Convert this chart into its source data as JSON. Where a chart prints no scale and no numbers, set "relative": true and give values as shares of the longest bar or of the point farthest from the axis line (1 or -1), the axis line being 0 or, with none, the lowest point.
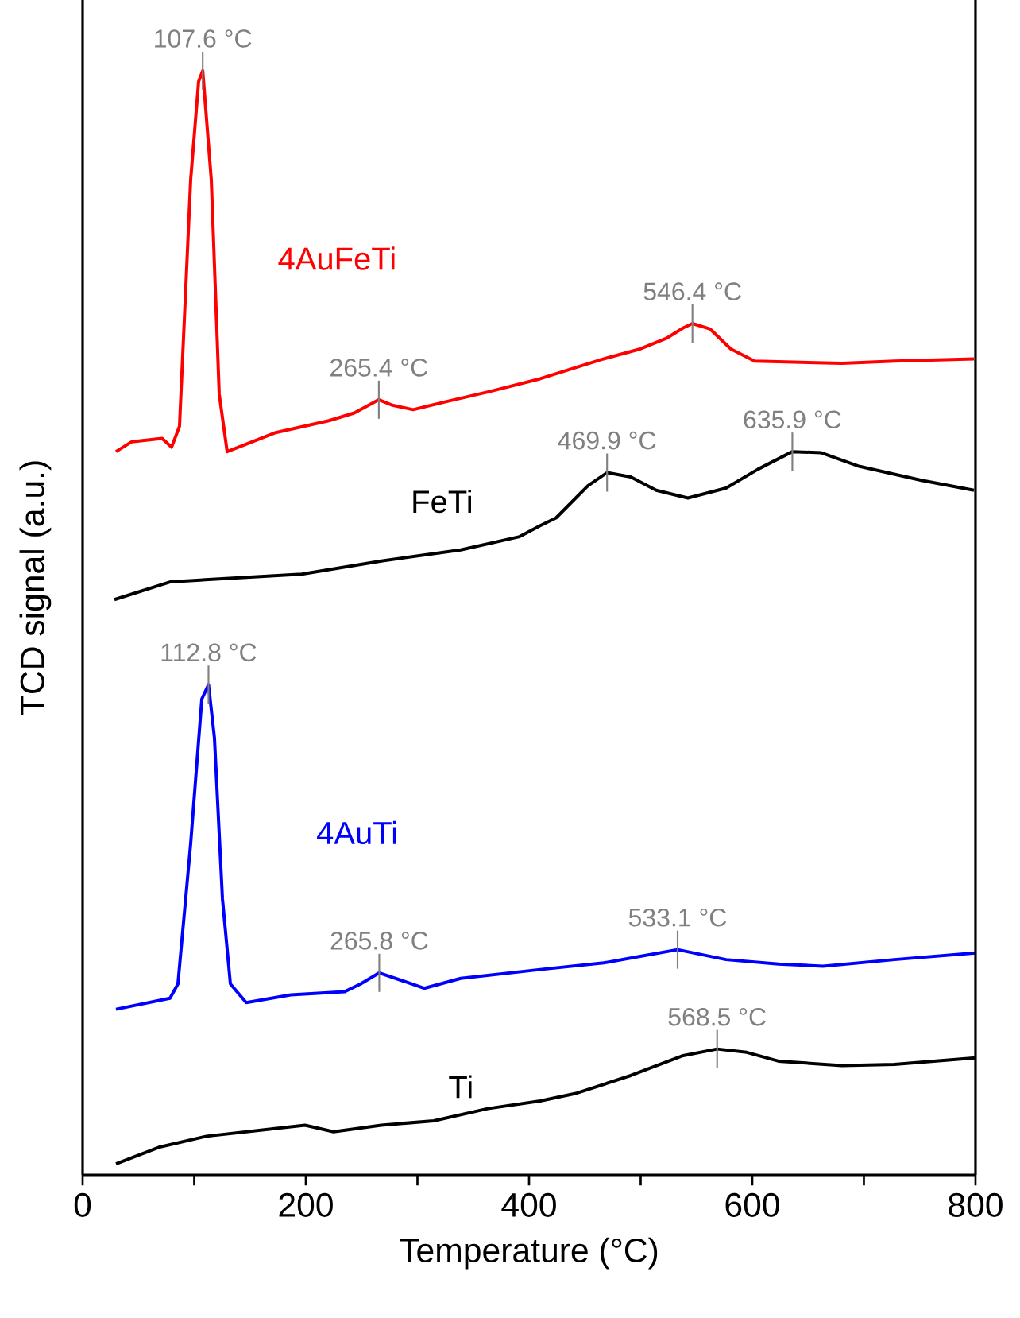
{
  "chart_data": {
    "type": "line",
    "relative": true,
    "xlabel": "Temperature (°C)",
    "ylabel": "TCD signal (a.u.)",
    "xlim": [
      0,
      800
    ],
    "xticks": [
      0,
      {
        "value": 100,
        "label": null
      },
      200,
      {
        "value": 300,
        "label": null
      },
      400,
      {
        "value": 500,
        "label": null
      },
      600,
      {
        "value": 700,
        "label": null
      },
      800
    ],
    "series": [
      {
        "name": "4AuFeTi",
        "color": "#ff0000",
        "x": [
          29.9,
          44.1,
          71.2,
          79.7,
          86.8,
          96.8,
          103.9,
          107.6,
          115.3,
          122.4,
          129.5,
          172.2,
          220.6,
          243.4,
          265.4,
          277.6,
          296.1,
          324.6,
          363.0,
          410.0,
          466.9,
          499.6,
          523.8,
          538.1,
          546.4,
          562.3,
          580.8,
          602.1,
          680.4,
          727.4,
          798.6
        ],
        "values": [
          0.655,
          0.664,
          0.667,
          0.659,
          0.678,
          0.901,
          0.99,
          1.0,
          0.901,
          0.707,
          0.655,
          0.672,
          0.683,
          0.69,
          0.702,
          0.697,
          0.693,
          0.7,
          0.709,
          0.721,
          0.739,
          0.748,
          0.758,
          0.767,
          0.771,
          0.766,
          0.748,
          0.737,
          0.735,
          0.737,
          0.739
        ]
      },
      {
        "name": "FeTi",
        "color": "#000000",
        "x": [
          28.5,
          78.3,
          125.3,
          196.4,
          267.6,
          338.8,
          391.5,
          410.0,
          424.2,
          452.7,
          469.9,
          491.1,
          513.9,
          542.3,
          576.5,
          605.0,
          635.9,
          661.9,
          694.7,
          751.6,
          798.6
        ],
        "values": [
          0.521,
          0.537,
          0.54,
          0.544,
          0.556,
          0.566,
          0.578,
          0.588,
          0.595,
          0.624,
          0.636,
          0.632,
          0.62,
          0.613,
          0.622,
          0.639,
          0.655,
          0.654,
          0.642,
          0.629,
          0.62
        ]
      },
      {
        "name": "4AuTi",
        "color": "#0000ff",
        "x": [
          29.9,
          78.3,
          85.4,
          96.8,
          106.8,
          112.8,
          118.1,
          125.3,
          132.4,
          146.6,
          186.5,
          234.9,
          249.1,
          265.8,
          286.1,
          306.0,
          338.8,
          410.0,
          466.9,
          499.6,
          533.1,
          576.5,
          623.5,
          663.3,
          727.4,
          800
        ],
        "values": [
          0.15,
          0.16,
          0.173,
          0.3,
          0.431,
          0.444,
          0.396,
          0.25,
          0.173,
          0.156,
          0.163,
          0.166,
          0.173,
          0.183,
          0.176,
          0.169,
          0.178,
          0.186,
          0.192,
          0.198,
          0.204,
          0.195,
          0.191,
          0.189,
          0.195,
          0.201
        ]
      },
      {
        "name": "Ti",
        "color": "#000000",
        "x": [
          29.9,
          68.3,
          111.0,
          172.2,
          199.3,
          224.9,
          267.6,
          314.6,
          363.0,
          410.0,
          442.7,
          491.1,
          538.1,
          568.5,
          595.0,
          623.5,
          680.4,
          727.4,
          800
        ],
        "values": [
          0.01,
          0.025,
          0.035,
          0.042,
          0.045,
          0.039,
          0.045,
          0.049,
          0.06,
          0.067,
          0.074,
          0.09,
          0.108,
          0.114,
          0.111,
          0.103,
          0.099,
          0.1,
          0.106
        ]
      }
    ],
    "annotations": [
      {
        "text": "107.6 °C",
        "x": 107.6,
        "y": 1.0
      },
      {
        "text": "265.4 °C",
        "x": 265.4,
        "y": 0.702
      },
      {
        "text": "546.4 °C",
        "x": 546.4,
        "y": 0.771
      },
      {
        "text": "469.9 °C",
        "x": 469.9,
        "y": 0.636
      },
      {
        "text": "635.9 °C",
        "x": 635.9,
        "y": 0.655
      },
      {
        "text": "112.8 °C",
        "x": 112.8,
        "y": 0.444
      },
      {
        "text": "265.8 °C",
        "x": 265.8,
        "y": 0.183
      },
      {
        "text": "533.1 °C",
        "x": 533.1,
        "y": 0.204
      },
      {
        "text": "568.5 °C",
        "x": 568.5,
        "y": 0.114
      }
    ]
  }
}
